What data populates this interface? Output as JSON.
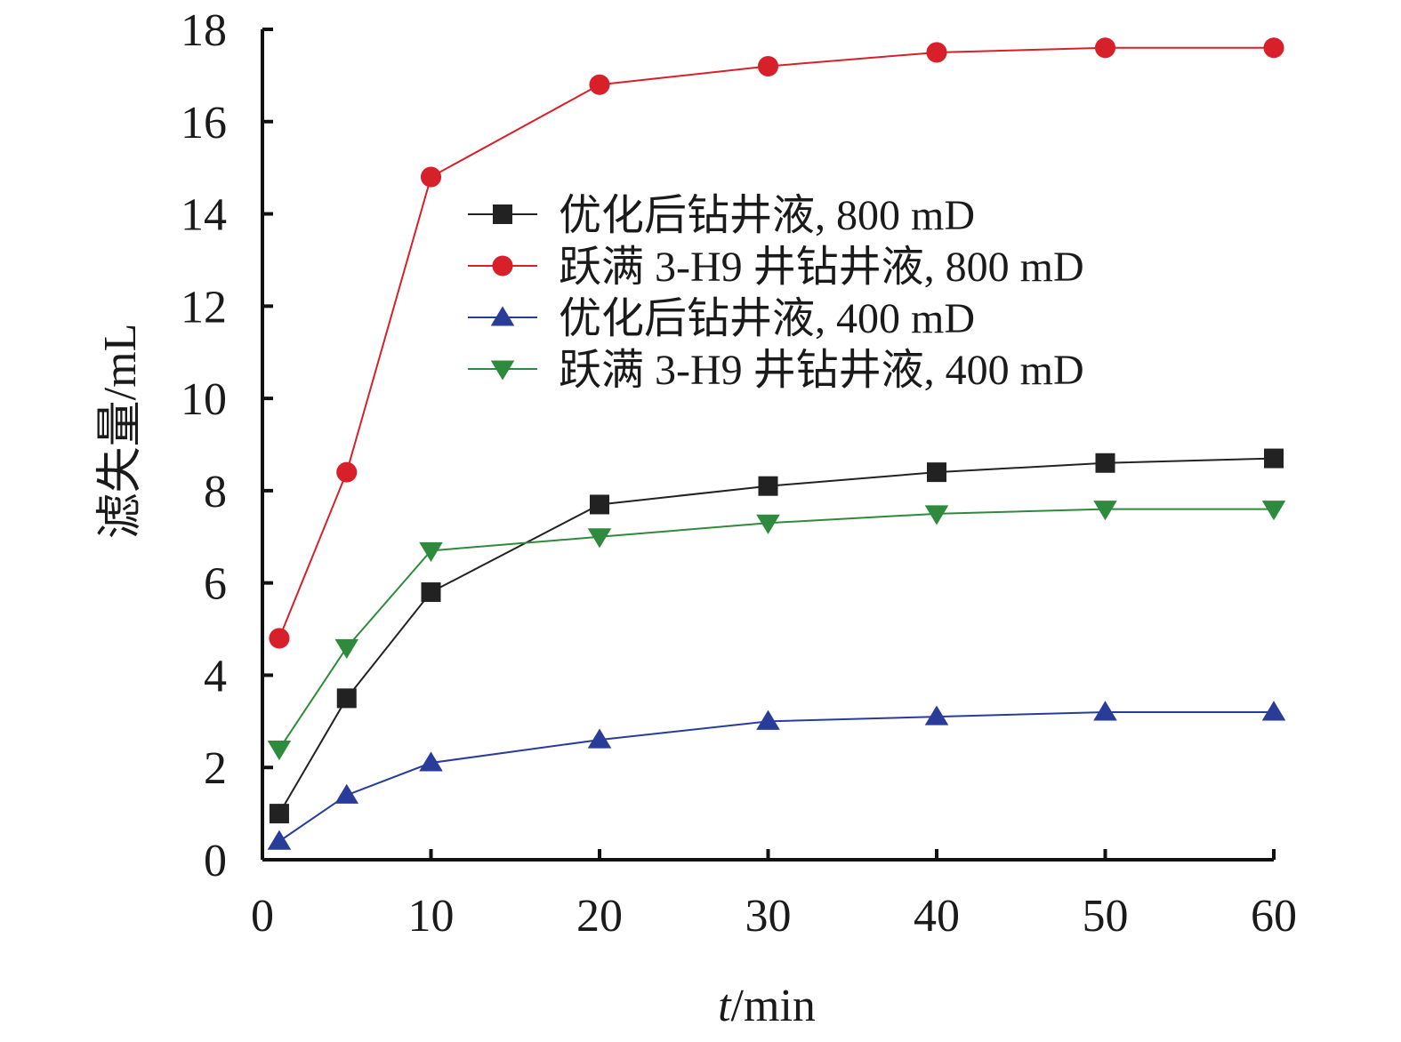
{
  "chart_data": {
    "type": "line",
    "xlabel": "t/min",
    "xlabel_italic_part": "t",
    "xlabel_rest": "/min",
    "ylabel": "滤失量/mL",
    "xlim": [
      0,
      60
    ],
    "ylim": [
      0,
      18
    ],
    "x_ticks": [
      0,
      10,
      20,
      30,
      40,
      50,
      60
    ],
    "y_ticks": [
      0,
      2,
      4,
      6,
      8,
      10,
      12,
      14,
      16,
      18
    ],
    "legend_position": "upper-center",
    "grid": false,
    "series": [
      {
        "name": "优化后钻井液, 800 mD",
        "marker": "square",
        "color": "#222222",
        "x": [
          1,
          5,
          10,
          20,
          30,
          40,
          50,
          60
        ],
        "y": [
          1.0,
          3.5,
          5.8,
          7.7,
          8.1,
          8.4,
          8.6,
          8.7
        ]
      },
      {
        "name": "跃满 3-H9 井钻井液, 800 mD",
        "marker": "circle",
        "color": "#d8202a",
        "x": [
          1,
          5,
          10,
          20,
          30,
          40,
          50,
          60
        ],
        "y": [
          4.8,
          8.4,
          14.8,
          16.8,
          17.2,
          17.5,
          17.6,
          17.6
        ]
      },
      {
        "name": "优化后钻井液, 400 mD",
        "marker": "triangle-up",
        "color": "#2a3c9a",
        "x": [
          1,
          5,
          10,
          20,
          30,
          40,
          50,
          60
        ],
        "y": [
          0.4,
          1.4,
          2.1,
          2.6,
          3.0,
          3.1,
          3.2,
          3.2
        ]
      },
      {
        "name": "跃满 3-H9 井钻井液, 400 mD",
        "marker": "triangle-down",
        "color": "#2e8b3e",
        "x": [
          1,
          5,
          10,
          20,
          30,
          40,
          50,
          60
        ],
        "y": [
          2.4,
          4.6,
          6.7,
          7.0,
          7.3,
          7.5,
          7.6,
          7.6
        ]
      }
    ]
  }
}
